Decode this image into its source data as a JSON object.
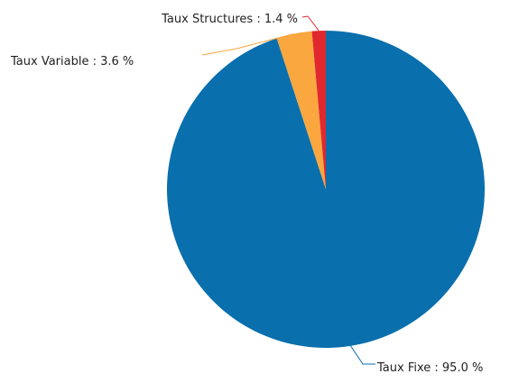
{
  "chart_data": {
    "type": "pie",
    "title": "",
    "categories": [
      "Taux Fixe",
      "Taux Variable",
      "Taux Structures"
    ],
    "values": [
      95.0,
      3.6,
      1.4
    ],
    "labels": [
      "Taux Fixe : 95.0 %",
      "Taux Variable : 3.6 %",
      "Taux Structures : 1.4 %"
    ],
    "colors": [
      "#0a6fad",
      "#f9a73e",
      "#e0282e"
    ],
    "legend": "none"
  }
}
